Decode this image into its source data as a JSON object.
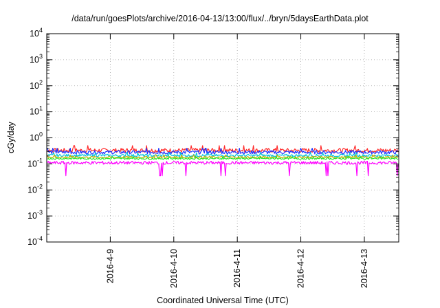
{
  "chart_data": {
    "type": "line",
    "title": "/data/run/goesPlots/archive/2016-04-13/13:00/flux/../bryn/5daysEarthData.plot",
    "xlabel": "Coordinated Universal Time (UTC)",
    "ylabel": "cGy/day",
    "yscale": "log",
    "ylim": [
      0.0001,
      10000
    ],
    "yticks": [
      {
        "base": "10",
        "exp": "-4",
        "value": 0.0001
      },
      {
        "base": "10",
        "exp": "-3",
        "value": 0.001
      },
      {
        "base": "10",
        "exp": "-2",
        "value": 0.01
      },
      {
        "base": "10",
        "exp": "-1",
        "value": 0.1
      },
      {
        "base": "10",
        "exp": "0",
        "value": 1
      },
      {
        "base": "10",
        "exp": "1",
        "value": 10
      },
      {
        "base": "10",
        "exp": "2",
        "value": 100
      },
      {
        "base": "10",
        "exp": "3",
        "value": 1000
      },
      {
        "base": "10",
        "exp": "4",
        "value": 10000
      }
    ],
    "xlim": [
      "2016-04-08 00:00",
      "2016-04-13 13:00"
    ],
    "xticks": [
      {
        "label": "2016-4-9",
        "date": "2016-04-09"
      },
      {
        "label": "2016-4-10",
        "date": "2016-04-10"
      },
      {
        "label": "2016-4-11",
        "date": "2016-04-11"
      },
      {
        "label": "2016-4-12",
        "date": "2016-04-12"
      },
      {
        "label": "2016-4-13",
        "date": "2016-04-13"
      }
    ],
    "grid": true,
    "series": [
      {
        "color": "#ff2a2a",
        "typical": 0.33,
        "low": 0.24,
        "high": 0.5
      },
      {
        "color": "#1f33ff",
        "typical": 0.28,
        "low": 0.18,
        "high": 0.4
      },
      {
        "color": "#00c0d8",
        "typical": 0.21,
        "low": 0.15,
        "high": 0.27
      },
      {
        "color": "#c8b400",
        "typical": 0.18,
        "low": 0.14,
        "high": 0.22
      },
      {
        "color": "#27e327",
        "typical": 0.16,
        "low": 0.13,
        "high": 0.19
      },
      {
        "color": "#ff00ff",
        "typical": 0.11,
        "low": 0.035,
        "high": 0.15
      }
    ]
  }
}
